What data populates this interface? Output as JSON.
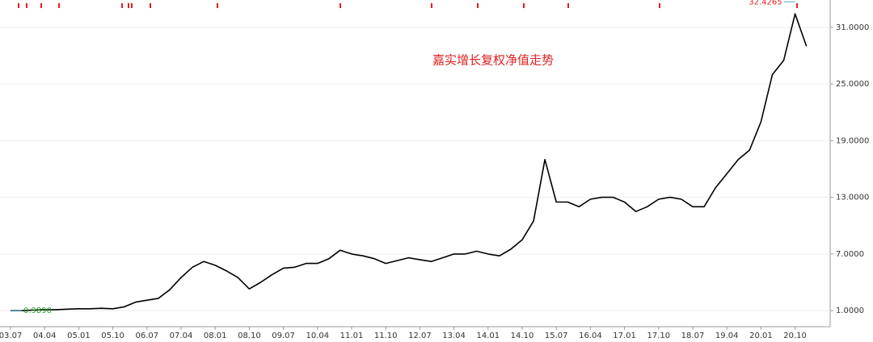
{
  "chart_data": {
    "type": "line",
    "title": "嘉实增长复权净值走势",
    "x": [
      "03.07",
      null,
      null,
      "04.04",
      null,
      null,
      "05.01",
      null,
      null,
      "05.10",
      null,
      null,
      "06.07",
      null,
      null,
      "07.04",
      null,
      null,
      "08.01",
      null,
      null,
      "08.10",
      null,
      null,
      "09.07",
      null,
      null,
      "10.04",
      null,
      null,
      "11.01",
      null,
      null,
      "11.10",
      null,
      null,
      "12.07",
      null,
      null,
      "13.04",
      null,
      null,
      "14.01",
      null,
      null,
      "14.10",
      null,
      null,
      "15.07",
      null,
      null,
      "16.04",
      null,
      null,
      "17.01",
      null,
      null,
      "17.10",
      null,
      null,
      "18.07",
      null,
      null,
      "19.04",
      null,
      null,
      "20.01",
      null,
      null,
      "20.10",
      null
    ],
    "values": [
      0.989,
      1.0,
      1.05,
      1.1,
      1.1,
      1.15,
      1.2,
      1.2,
      1.25,
      1.2,
      1.4,
      1.9,
      2.1,
      2.3,
      3.2,
      4.5,
      5.6,
      6.2,
      5.8,
      5.2,
      4.5,
      3.3,
      4.0,
      4.8,
      5.5,
      5.6,
      6.0,
      6.0,
      6.5,
      7.4,
      7.0,
      6.8,
      6.5,
      6.0,
      6.3,
      6.6,
      6.4,
      6.2,
      6.6,
      7.0,
      7.0,
      7.3,
      7.0,
      6.8,
      7.5,
      8.5,
      10.5,
      17.0,
      12.5,
      12.5,
      12.0,
      12.8,
      13.0,
      13.0,
      12.5,
      11.5,
      12.0,
      12.8,
      13.0,
      12.8,
      12.0,
      12.0,
      14.0,
      15.5,
      17.0,
      18.0,
      21.0,
      26.0,
      27.5,
      32.4265,
      29.0
    ],
    "value_labels": [
      "0.9890",
      null,
      null,
      null,
      null,
      null,
      null,
      null,
      null,
      null,
      null,
      null,
      null,
      null,
      null,
      null,
      null,
      null,
      null,
      null,
      null,
      null,
      null,
      null,
      null,
      null,
      null,
      null,
      null,
      null,
      null,
      null,
      null,
      null,
      null,
      null,
      null,
      null,
      null,
      null,
      null,
      null,
      null,
      null,
      null,
      null,
      null,
      null,
      null,
      null,
      null,
      null,
      null,
      null,
      null,
      null,
      null,
      null,
      null,
      null,
      null,
      null,
      null,
      null,
      null,
      null,
      null,
      null,
      null,
      "32.4265",
      null
    ],
    "color": "#000000",
    "ylim": [
      -0.7,
      33.9
    ],
    "yticks": [
      {
        "value": 1,
        "label": "1.0000"
      },
      {
        "value": 7,
        "label": "7.0000"
      },
      {
        "value": 13,
        "label": "13.0000"
      },
      {
        "value": 19,
        "label": "19.0000"
      },
      {
        "value": 25,
        "label": "25.0000"
      },
      {
        "value": 31,
        "label": "31.0000"
      }
    ],
    "grid": true
  }
}
